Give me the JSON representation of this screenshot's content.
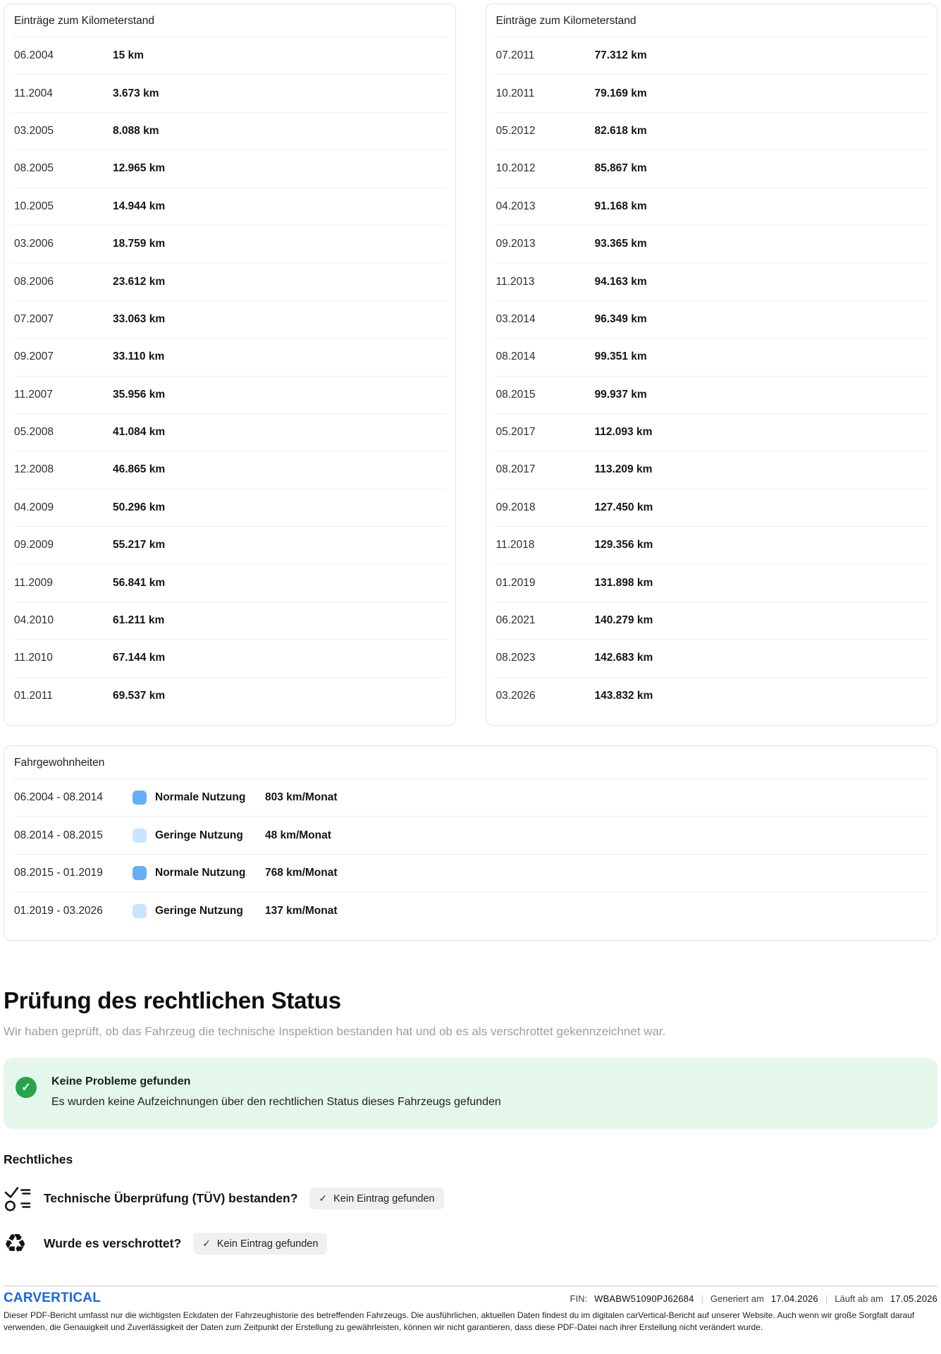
{
  "mileage_tables": [
    {
      "title": "Einträge zum Kilometerstand",
      "rows": [
        {
          "date": "06.2004",
          "km": "15 km"
        },
        {
          "date": "11.2004",
          "km": "3.673 km"
        },
        {
          "date": "03.2005",
          "km": "8.088 km"
        },
        {
          "date": "08.2005",
          "km": "12.965 km"
        },
        {
          "date": "10.2005",
          "km": "14.944 km"
        },
        {
          "date": "03.2006",
          "km": "18.759 km"
        },
        {
          "date": "08.2006",
          "km": "23.612 km"
        },
        {
          "date": "07.2007",
          "km": "33.063 km"
        },
        {
          "date": "09.2007",
          "km": "33.110 km"
        },
        {
          "date": "11.2007",
          "km": "35.956 km"
        },
        {
          "date": "05.2008",
          "km": "41.084 km"
        },
        {
          "date": "12.2008",
          "km": "46.865 km"
        },
        {
          "date": "04.2009",
          "km": "50.296 km"
        },
        {
          "date": "09.2009",
          "km": "55.217 km"
        },
        {
          "date": "11.2009",
          "km": "56.841 km"
        },
        {
          "date": "04.2010",
          "km": "61.211 km"
        },
        {
          "date": "11.2010",
          "km": "67.144 km"
        },
        {
          "date": "01.2011",
          "km": "69.537 km"
        }
      ]
    },
    {
      "title": "Einträge zum Kilometerstand",
      "rows": [
        {
          "date": "07.2011",
          "km": "77.312 km"
        },
        {
          "date": "10.2011",
          "km": "79.169 km"
        },
        {
          "date": "05.2012",
          "km": "82.618 km"
        },
        {
          "date": "10.2012",
          "km": "85.867 km"
        },
        {
          "date": "04.2013",
          "km": "91.168 km"
        },
        {
          "date": "09.2013",
          "km": "93.365 km"
        },
        {
          "date": "11.2013",
          "km": "94.163 km"
        },
        {
          "date": "03.2014",
          "km": "96.349 km"
        },
        {
          "date": "08.2014",
          "km": "99.351 km"
        },
        {
          "date": "08.2015",
          "km": "99.937 km"
        },
        {
          "date": "05.2017",
          "km": "112.093 km"
        },
        {
          "date": "08.2017",
          "km": "113.209 km"
        },
        {
          "date": "09.2018",
          "km": "127.450 km"
        },
        {
          "date": "11.2018",
          "km": "129.356 km"
        },
        {
          "date": "01.2019",
          "km": "131.898 km"
        },
        {
          "date": "06.2021",
          "km": "140.279 km"
        },
        {
          "date": "08.2023",
          "km": "142.683 km"
        },
        {
          "date": "03.2026",
          "km": "143.832 km"
        }
      ]
    }
  ],
  "driving_habits": {
    "title": "Fahrgewohnheiten",
    "rows": [
      {
        "period": "06.2004 - 08.2014",
        "usage": "normal",
        "label": "Normale Nutzung",
        "rate": "803 km/Monat"
      },
      {
        "period": "08.2014 - 08.2015",
        "usage": "light",
        "label": "Geringe Nutzung",
        "rate": "48 km/Monat"
      },
      {
        "period": "08.2015 - 01.2019",
        "usage": "normal",
        "label": "Normale Nutzung",
        "rate": "768 km/Monat"
      },
      {
        "period": "01.2019 - 03.2026",
        "usage": "light",
        "label": "Geringe Nutzung",
        "rate": "137 km/Monat"
      }
    ]
  },
  "legal": {
    "heading": "Prüfung des rechtlichen Status",
    "subtitle": "Wir haben geprüft, ob das Fahrzeug die technische Inspektion bestanden hat und ob es als verschrottet gekennzeichnet war.",
    "status_title": "Keine Probleme gefunden",
    "status_text": "Es wurden keine Aufzeichnungen über den rechtlichen Status dieses Fahrzeugs gefunden",
    "status_check": "✓",
    "subheading": "Rechtliches",
    "items": [
      {
        "icon": "checklist-icon",
        "question": "Technische Überprüfung (TÜV) bestanden?",
        "badge_check": "✓",
        "badge": "Kein Eintrag gefunden"
      },
      {
        "icon": "recycle-icon",
        "question": "Wurde es verschrottet?",
        "badge_check": "✓",
        "badge": "Kein Eintrag gefunden"
      }
    ],
    "recycle_glyph": "♻"
  },
  "footer": {
    "logo": "CARVERTICAL",
    "fin_label": "FIN:",
    "fin_value": "WBABW51090PJ62684",
    "separator": "|",
    "generated_label": "Generiert am",
    "generated_value": "17.04.2026",
    "expires_label": "Läuft ab am",
    "expires_value": "17.05.2026",
    "disclaimer": "Dieser PDF-Bericht umfasst nur die wichtigsten Eckdaten der Fahrzeughistorie des betreffenden Fahrzeugs. Die ausführlichen, aktuellen Daten findest du im digitalen carVertical-Bericht auf unserer Website. Auch wenn wir große Sorgfalt darauf verwenden, die Genauigkeit und Zuverlässigkeit der Daten zum Zeitpunkt der Erstellung zu gewährleisten, können wir nicht garantieren, dass diese PDF-Datei nach ihrer Erstellung nicht verändert wurde."
  },
  "colors": {
    "normal_usage": "#64aef5",
    "light_usage": "#c9e4fc",
    "status_green": "#27a44b",
    "status_bg": "#e5f6ea",
    "brand_blue": "#1566e8",
    "badge_bg": "#f0f0f0"
  }
}
